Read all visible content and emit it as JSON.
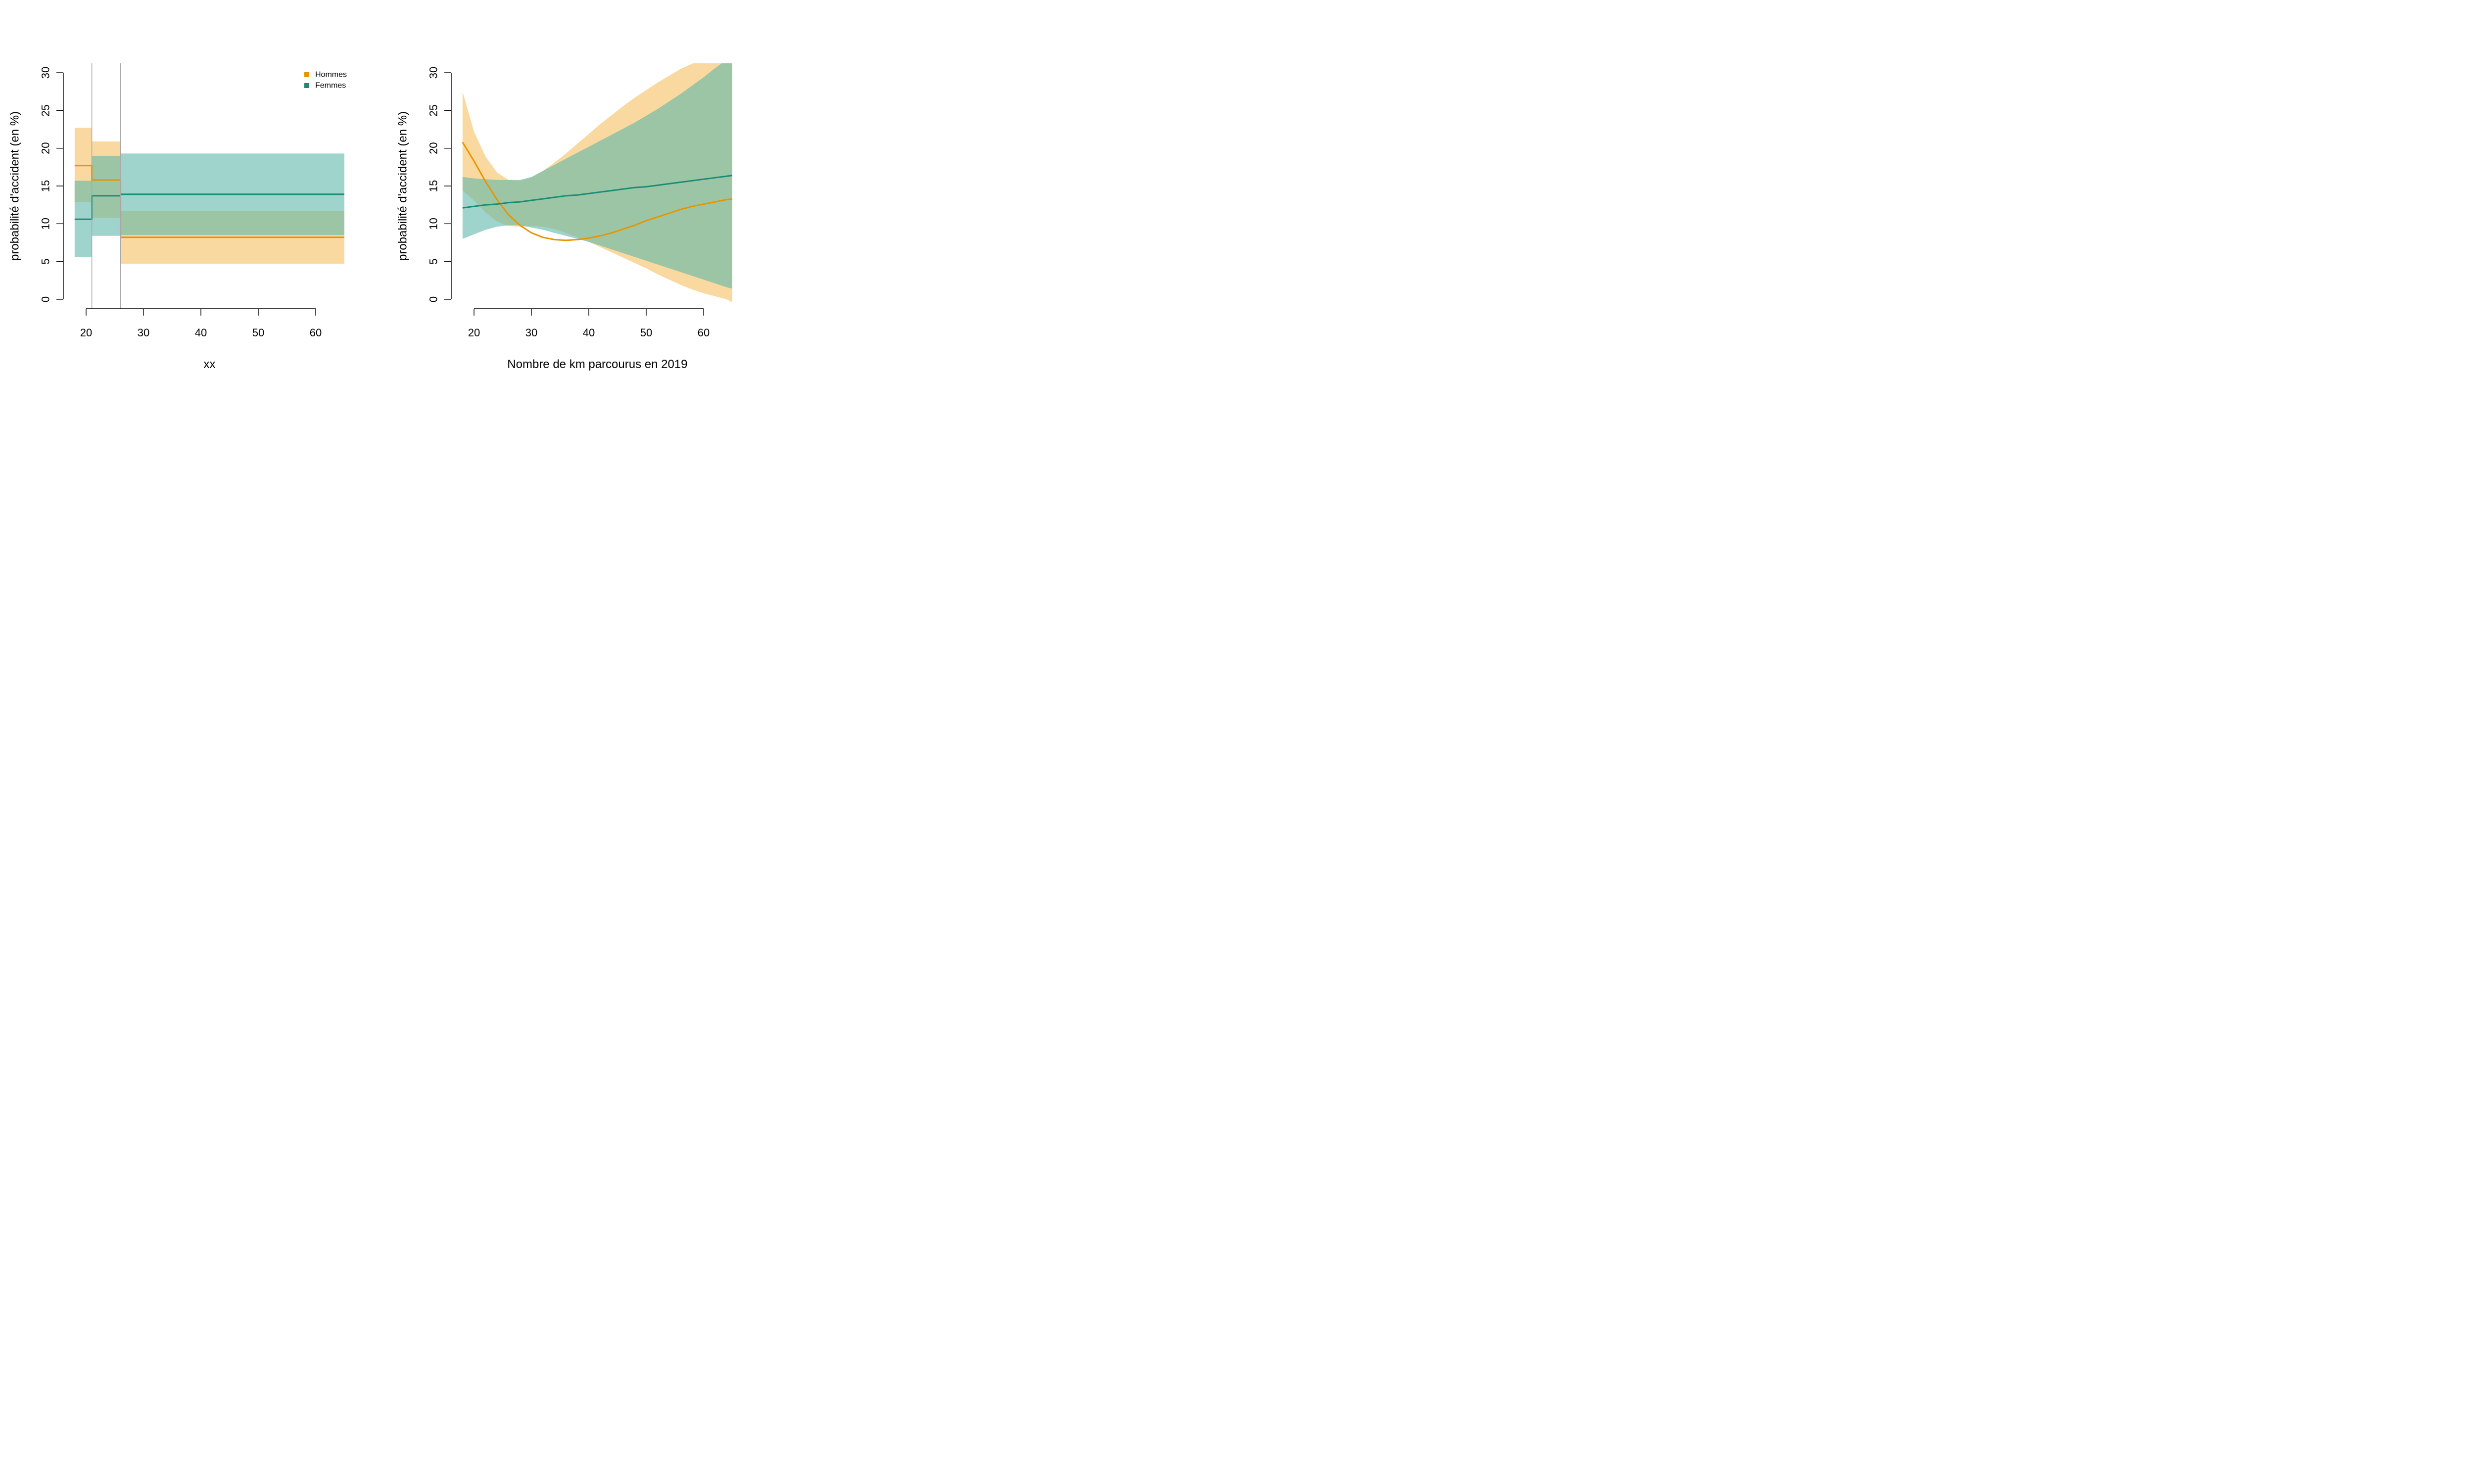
{
  "colors": {
    "hommes_line": "#E69500",
    "hommes_band": "#F5C060",
    "femmes_line": "#1A8C76",
    "femmes_band": "#5DB8A8",
    "vline": "#A8A8A8"
  },
  "chart_data": [
    {
      "type": "line",
      "step": true,
      "title": "",
      "xlabel": "xx",
      "ylabel": "probabilité d'accident (en %)",
      "xlim": [
        18,
        65
      ],
      "ylim": [
        0,
        30
      ],
      "xticks": [
        20,
        30,
        40,
        50,
        60
      ],
      "yticks": [
        0,
        5,
        10,
        15,
        20,
        25,
        30
      ],
      "grid": false,
      "legend": {
        "position": "top-right",
        "entries": [
          "Hommes",
          "Femmes"
        ]
      },
      "breakpoints": [
        21,
        26
      ],
      "series": [
        {
          "name": "Hommes",
          "color_key": "hommes",
          "segments": [
            {
              "x0": 18,
              "x1": 21,
              "value": 17.7,
              "lower": 12.9,
              "upper": 22.7
            },
            {
              "x0": 21,
              "x1": 26,
              "value": 15.8,
              "lower": 10.8,
              "upper": 20.9
            },
            {
              "x0": 26,
              "x1": 65,
              "value": 8.2,
              "lower": 4.7,
              "upper": 11.7
            }
          ]
        },
        {
          "name": "Femmes",
          "color_key": "femmes",
          "segments": [
            {
              "x0": 18,
              "x1": 21,
              "value": 10.6,
              "lower": 5.6,
              "upper": 15.7
            },
            {
              "x0": 21,
              "x1": 26,
              "value": 13.7,
              "lower": 8.4,
              "upper": 19.0
            },
            {
              "x0": 26,
              "x1": 65,
              "value": 13.9,
              "lower": 8.5,
              "upper": 19.3
            }
          ]
        }
      ]
    },
    {
      "type": "line",
      "step": false,
      "title": "",
      "xlabel": "Nombre de km parcourus en 2019",
      "ylabel": "probabilité d'accident (en %)",
      "xlim": [
        18,
        65
      ],
      "ylim": [
        0,
        30
      ],
      "xticks": [
        20,
        30,
        40,
        50,
        60
      ],
      "yticks": [
        0,
        5,
        10,
        15,
        20,
        25,
        30
      ],
      "grid": false,
      "legend": null,
      "series": [
        {
          "name": "Hommes",
          "color_key": "hommes",
          "x": [
            18,
            20,
            22,
            24,
            26,
            28,
            30,
            32,
            34,
            36,
            38,
            40,
            42,
            44,
            46,
            48,
            50,
            52,
            54,
            56,
            58,
            60,
            62,
            64,
            65
          ],
          "y": [
            20.8,
            18.3,
            15.6,
            13.2,
            11.2,
            9.8,
            8.8,
            8.2,
            7.9,
            7.8,
            7.9,
            8.1,
            8.4,
            8.8,
            9.3,
            9.8,
            10.4,
            10.9,
            11.4,
            11.9,
            12.3,
            12.6,
            12.9,
            13.2,
            13.3
          ],
          "lower": [
            14.4,
            13.1,
            11.5,
            10.3,
            9.7,
            9.6,
            9.7,
            9.6,
            9.3,
            8.8,
            8.2,
            7.6,
            6.9,
            6.2,
            5.5,
            4.8,
            4.1,
            3.3,
            2.6,
            1.9,
            1.3,
            0.8,
            0.4,
            0.0,
            -0.4
          ],
          "upper": [
            27.5,
            22.2,
            18.9,
            16.8,
            15.8,
            15.7,
            16.1,
            17.0,
            18.1,
            19.3,
            20.6,
            21.9,
            23.2,
            24.4,
            25.6,
            26.7,
            27.7,
            28.7,
            29.6,
            30.5,
            31.2,
            31.8,
            32.3,
            32.7,
            32.9
          ]
        },
        {
          "name": "Femmes",
          "color_key": "femmes",
          "x": [
            18,
            20,
            22,
            24,
            26,
            28,
            30,
            32,
            34,
            36,
            38,
            40,
            42,
            44,
            46,
            48,
            50,
            52,
            54,
            56,
            58,
            60,
            62,
            64,
            65
          ],
          "y": [
            12.1,
            12.3,
            12.5,
            12.6,
            12.8,
            12.9,
            13.1,
            13.3,
            13.5,
            13.7,
            13.8,
            14.0,
            14.2,
            14.4,
            14.6,
            14.8,
            14.9,
            15.1,
            15.3,
            15.5,
            15.7,
            15.9,
            16.1,
            16.3,
            16.4
          ],
          "lower": [
            8.0,
            8.6,
            9.2,
            9.6,
            9.8,
            9.8,
            9.5,
            9.2,
            8.8,
            8.4,
            8.0,
            7.6,
            7.1,
            6.6,
            6.1,
            5.6,
            5.1,
            4.6,
            4.1,
            3.6,
            3.1,
            2.6,
            2.1,
            1.6,
            1.4
          ],
          "upper": [
            16.2,
            16.0,
            15.9,
            15.8,
            15.8,
            15.8,
            16.2,
            17.0,
            17.8,
            18.6,
            19.4,
            20.2,
            21.0,
            21.8,
            22.6,
            23.4,
            24.3,
            25.2,
            26.2,
            27.2,
            28.3,
            29.4,
            30.6,
            31.7,
            32.3
          ]
        }
      ]
    }
  ]
}
